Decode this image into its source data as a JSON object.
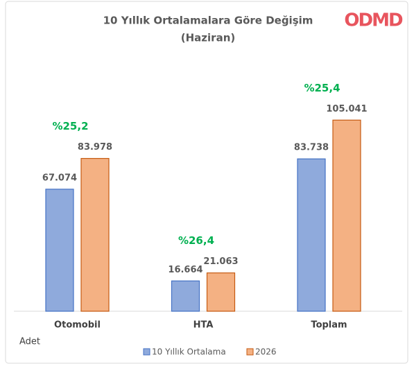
{
  "chart_data": {
    "type": "bar",
    "title": "10 Yıllık Ortalamalara Göre Değişim",
    "subtitle": "(Haziran)",
    "logo": "ODMD",
    "y_label": "Adet",
    "categories": [
      "Otomobil",
      "HTA",
      "Toplam"
    ],
    "series": [
      {
        "name": "10 Yıllık Ortalama",
        "color": "#8faadc",
        "values": [
          67074,
          16664,
          83738
        ],
        "value_labels": [
          "67.074",
          "16.664",
          "83.738"
        ]
      },
      {
        "name": "2026",
        "color": "#f4b183",
        "values": [
          83978,
          21063,
          105041
        ],
        "value_labels": [
          "83.978",
          "21.063",
          "105.041"
        ]
      }
    ],
    "annotations": [
      "%25,2",
      "%26,4",
      "%25,4"
    ],
    "ylim": [
      0,
      120000
    ],
    "grid": false,
    "legend": "bottom"
  }
}
